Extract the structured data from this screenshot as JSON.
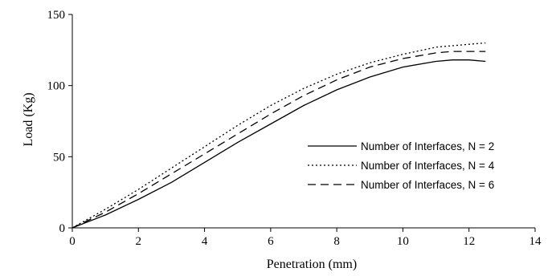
{
  "chart_data": {
    "type": "line",
    "title": "",
    "xlabel": "Penetration (mm)",
    "ylabel": "Load (Kg)",
    "xlim": [
      0,
      14
    ],
    "ylim": [
      0,
      150
    ],
    "xticks": [
      0,
      2,
      4,
      6,
      8,
      10,
      12,
      14
    ],
    "yticks": [
      0,
      50,
      100,
      150
    ],
    "xtick_labels": [
      "0",
      "2",
      "4",
      "6",
      "8",
      "10",
      "12",
      "14"
    ],
    "ytick_labels": [
      "0",
      "50",
      "100",
      "150"
    ],
    "grid": false,
    "legend_position": "right",
    "series": [
      {
        "name": "Number of Interfaces, N = 2",
        "line_style": "solid",
        "x": [
          0,
          1,
          2,
          3,
          4,
          5,
          6,
          7,
          8,
          9,
          10,
          11,
          11.5,
          12,
          12.5
        ],
        "y": [
          0,
          9,
          20,
          32,
          46,
          60,
          73,
          86,
          97,
          106,
          113,
          117,
          118,
          118,
          117
        ]
      },
      {
        "name": "Number of Interfaces, N = 4",
        "line_style": "dotted",
        "x": [
          0,
          1,
          2,
          3,
          4,
          5,
          6,
          7,
          8,
          9,
          10,
          11,
          12,
          12.5
        ],
        "y": [
          0,
          13,
          27,
          42,
          57,
          72,
          86,
          98,
          108,
          116,
          122,
          127,
          129,
          130
        ]
      },
      {
        "name": "Number of Interfaces, N = 6",
        "line_style": "dashed",
        "x": [
          0,
          1,
          2,
          3,
          4,
          5,
          6,
          7,
          8,
          9,
          10,
          11,
          11.5,
          12,
          12.5
        ],
        "y": [
          0,
          11,
          24,
          38,
          52,
          66,
          80,
          93,
          104,
          113,
          119,
          123,
          124,
          124,
          124
        ]
      }
    ]
  }
}
